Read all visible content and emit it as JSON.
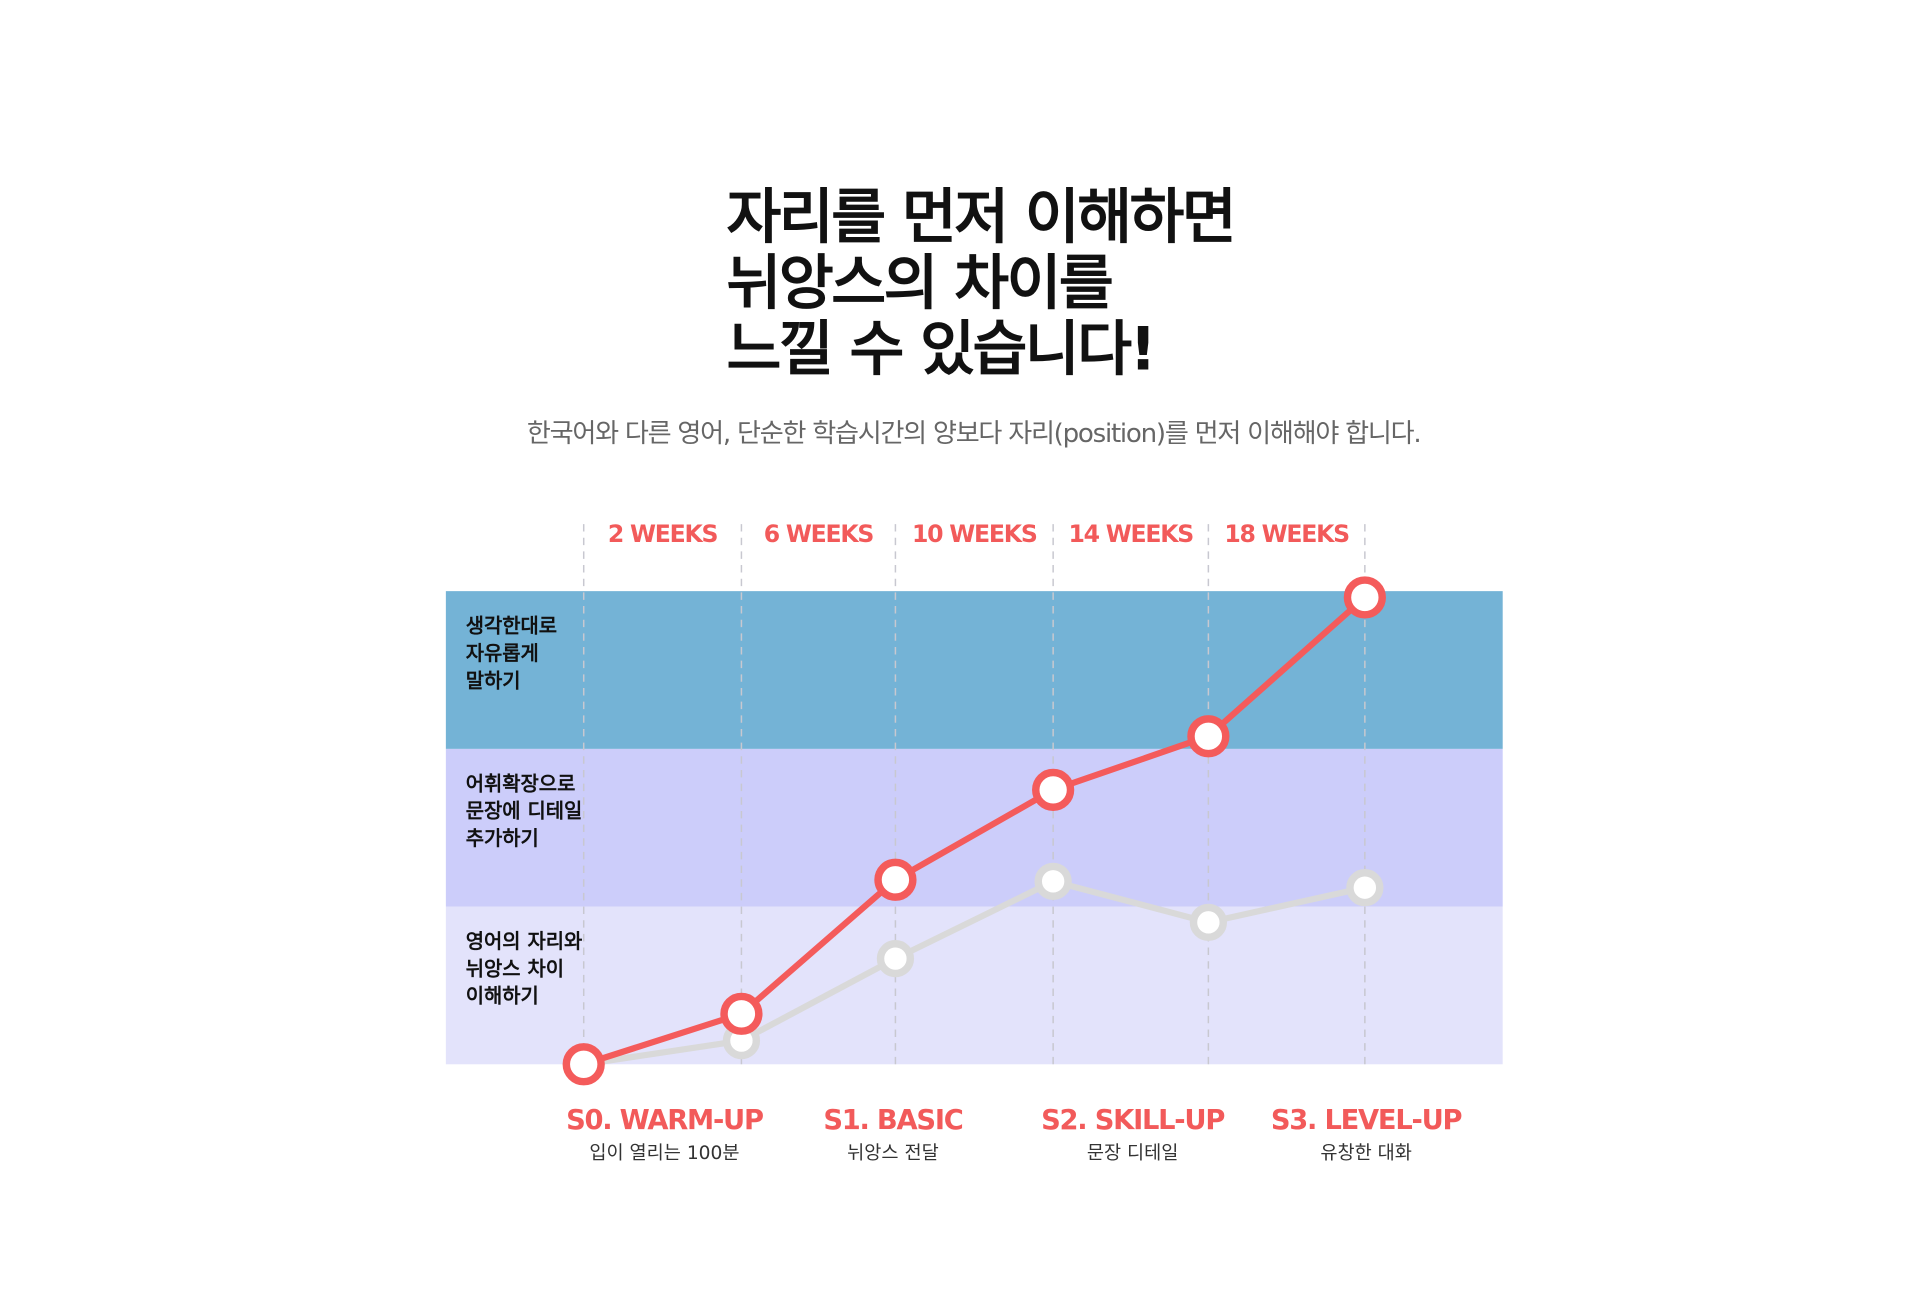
{
  "chart_data": {
    "type": "line",
    "title": [
      "자리를 먼저 이해하면",
      "뉘앙스의 차이를",
      "느낄 수 있습니다!"
    ],
    "subtitle": "한국어와 다른 영어, 단순한 학습시간의 양보다 자리(position)를 먼저 이해해야 합니다.",
    "periods": [
      "2 WEEKS",
      "6 WEEKS",
      "10 WEEKS",
      "14 WEEKS",
      "18 WEEKS"
    ],
    "stages": [
      {
        "name": "S0. WARM-UP",
        "desc": "입이 열리는 100분"
      },
      {
        "name": "S1. BASIC",
        "desc": "뉘앙스 전달"
      },
      {
        "name": "S2. SKILL-UP",
        "desc": "문장 디테일"
      },
      {
        "name": "S3. LEVEL-UP",
        "desc": "유창한 대화"
      }
    ],
    "bands": [
      {
        "label": [
          "영어의 자리와",
          "뉘앙스 차이",
          "이해하기"
        ],
        "color": "#e3e3fb"
      },
      {
        "label": [
          "어휘확장으로",
          "문장에 디테일",
          "추가하기"
        ],
        "color": "#cccdfa"
      },
      {
        "label": [
          "생각한대로",
          "자유롭게",
          "말하기"
        ],
        "color": "#74b3d6"
      }
    ],
    "ylim": [
      0,
      3
    ],
    "series": [
      {
        "color": "#d9d9d9",
        "values": [
          0,
          0.15,
          0.67,
          1.16,
          0.9,
          1.12
        ]
      },
      {
        "color": "#f45b5b",
        "values": [
          0,
          0.32,
          1.17,
          1.74,
          2.08,
          2.96
        ]
      }
    ]
  }
}
